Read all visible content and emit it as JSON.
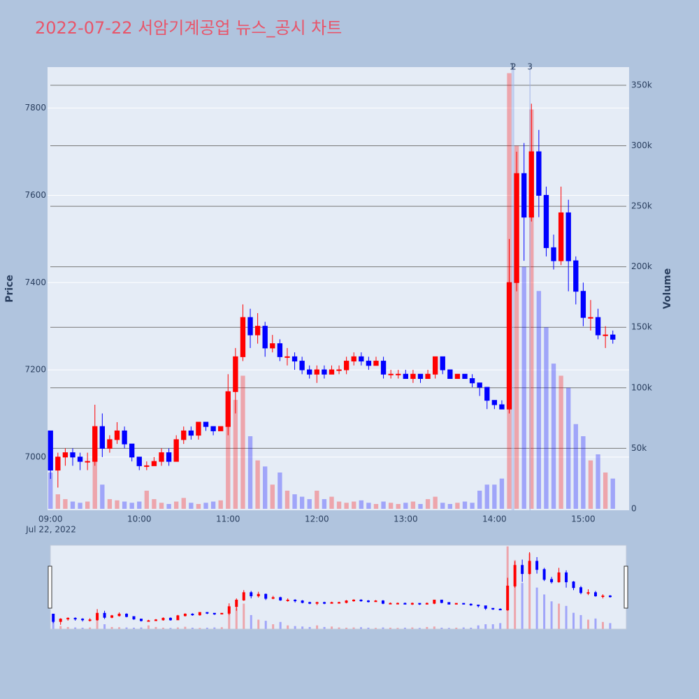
{
  "chart_data": {
    "type": "candlestick",
    "title": "2022-07-22 서암기계공업 뉴스_공시 차트",
    "y_label": "Price",
    "y2_label": "Volume",
    "x_date_label": "Jul 22, 2022",
    "increasing_color": "#ff0000",
    "decreasing_color": "#0000ff",
    "x": [
      "09:00",
      "09:05",
      "09:10",
      "09:15",
      "09:20",
      "09:25",
      "09:30",
      "09:35",
      "09:40",
      "09:45",
      "09:50",
      "09:55",
      "10:00",
      "10:05",
      "10:10",
      "10:15",
      "10:20",
      "10:25",
      "10:30",
      "10:35",
      "10:40",
      "10:45",
      "10:50",
      "10:55",
      "11:00",
      "11:05",
      "11:10",
      "11:15",
      "11:20",
      "11:25",
      "11:30",
      "11:35",
      "11:40",
      "11:45",
      "11:50",
      "11:55",
      "12:00",
      "12:05",
      "12:10",
      "12:15",
      "12:20",
      "12:25",
      "12:30",
      "12:35",
      "12:40",
      "12:45",
      "12:50",
      "12:55",
      "13:00",
      "13:05",
      "13:10",
      "13:15",
      "13:20",
      "13:25",
      "13:30",
      "13:35",
      "13:40",
      "13:45",
      "13:50",
      "13:55",
      "14:00",
      "14:05",
      "14:10",
      "14:15",
      "14:20",
      "14:25",
      "14:30",
      "14:35",
      "14:40",
      "14:45",
      "14:50",
      "14:55",
      "15:00",
      "15:05",
      "15:10",
      "15:15",
      "15:20"
    ],
    "open": [
      7060,
      6970,
      7000,
      7010,
      7000,
      6990,
      6990,
      7070,
      7020,
      7040,
      7060,
      7030,
      7000,
      6980,
      6980,
      6990,
      7010,
      6990,
      7040,
      7060,
      7050,
      7080,
      7070,
      7060,
      7070,
      7150,
      7230,
      7320,
      7280,
      7300,
      7250,
      7260,
      7230,
      7230,
      7220,
      7200,
      7190,
      7200,
      7190,
      7200,
      7200,
      7220,
      7230,
      7220,
      7210,
      7220,
      7190,
      7190,
      7190,
      7180,
      7190,
      7180,
      7190,
      7230,
      7200,
      7180,
      7190,
      7180,
      7170,
      7160,
      7130,
      7120,
      7110,
      7400,
      7650,
      7550,
      7700,
      7600,
      7480,
      7450,
      7560,
      7450,
      7380,
      7320,
      7320,
      7280,
      7280
    ],
    "high": [
      7060,
      7010,
      7020,
      7020,
      7010,
      7010,
      7120,
      7100,
      7050,
      7080,
      7070,
      7030,
      7000,
      6990,
      7000,
      7020,
      7020,
      7050,
      7070,
      7070,
      7080,
      7080,
      7070,
      7070,
      7190,
      7250,
      7350,
      7340,
      7330,
      7310,
      7280,
      7270,
      7250,
      7240,
      7230,
      7210,
      7210,
      7210,
      7210,
      7210,
      7230,
      7240,
      7240,
      7230,
      7230,
      7230,
      7200,
      7200,
      7200,
      7200,
      7190,
      7200,
      7230,
      7230,
      7200,
      7190,
      7190,
      7190,
      7170,
      7160,
      7130,
      7130,
      7500,
      7700,
      7720,
      7810,
      7750,
      7620,
      7510,
      7620,
      7590,
      7460,
      7400,
      7360,
      7340,
      7300,
      7290
    ],
    "low": [
      6950,
      6930,
      6980,
      6980,
      6970,
      6970,
      6980,
      7000,
      7010,
      7030,
      7020,
      6990,
      6970,
      6970,
      6980,
      6980,
      6980,
      6990,
      7030,
      7040,
      7040,
      7060,
      7050,
      7060,
      7050,
      7100,
      7220,
      7250,
      7260,
      7230,
      7240,
      7220,
      7210,
      7200,
      7190,
      7180,
      7170,
      7180,
      7190,
      7190,
      7190,
      7210,
      7210,
      7200,
      7210,
      7180,
      7180,
      7180,
      7180,
      7170,
      7170,
      7180,
      7180,
      7190,
      7180,
      7180,
      7180,
      7160,
      7140,
      7110,
      7110,
      7110,
      7100,
      7380,
      7450,
      7540,
      7550,
      7460,
      7430,
      7440,
      7380,
      7350,
      7300,
      7290,
      7270,
      7250,
      7260
    ],
    "close": [
      6970,
      7000,
      7010,
      7000,
      6990,
      6990,
      7070,
      7020,
      7040,
      7060,
      7030,
      7000,
      6980,
      6980,
      6990,
      7010,
      6990,
      7040,
      7060,
      7050,
      7080,
      7070,
      7060,
      7070,
      7150,
      7230,
      7320,
      7280,
      7300,
      7250,
      7260,
      7230,
      7230,
      7220,
      7200,
      7190,
      7200,
      7190,
      7200,
      7200,
      7220,
      7230,
      7220,
      7210,
      7220,
      7190,
      7190,
      7190,
      7180,
      7190,
      7180,
      7190,
      7230,
      7200,
      7180,
      7190,
      7180,
      7170,
      7160,
      7130,
      7120,
      7110,
      7400,
      7650,
      7550,
      7700,
      7600,
      7480,
      7450,
      7560,
      7450,
      7380,
      7320,
      7320,
      7280,
      7280,
      7270
    ],
    "volume": [
      30000,
      12000,
      8000,
      6000,
      5000,
      6000,
      40000,
      20000,
      8000,
      7000,
      6000,
      5000,
      6000,
      15000,
      8000,
      5000,
      4000,
      6000,
      9000,
      5000,
      4000,
      5000,
      6000,
      7000,
      80000,
      90000,
      110000,
      60000,
      40000,
      35000,
      20000,
      30000,
      15000,
      12000,
      10000,
      8000,
      15000,
      8000,
      10000,
      6000,
      5000,
      6000,
      7000,
      5000,
      4000,
      6000,
      5000,
      4000,
      5000,
      6000,
      4000,
      8000,
      10000,
      5000,
      4000,
      5000,
      6000,
      5000,
      15000,
      20000,
      20000,
      25000,
      360000,
      300000,
      200000,
      330000,
      180000,
      150000,
      120000,
      110000,
      100000,
      70000,
      60000,
      40000,
      45000,
      30000,
      25000
    ],
    "news": [
      {
        "x": "14:12",
        "label": "1"
      },
      {
        "x": "14:13",
        "label": "2"
      },
      {
        "x": "14:24",
        "label": "3"
      }
    ],
    "xlim": [
      "08:58",
      "15:31"
    ],
    "xticks": [
      "09:00",
      "10:00",
      "11:00",
      "12:00",
      "13:00",
      "14:00",
      "15:00"
    ],
    "ylim": [
      6878,
      7894
    ],
    "yticks": [
      7000,
      7200,
      7400,
      7600,
      7800
    ],
    "y2lim": [
      -1200,
      365000
    ],
    "y2ticks": [
      0,
      {
        "value": 50000,
        "label": "50k"
      },
      {
        "value": 100000,
        "label": "100k"
      },
      {
        "value": 150000,
        "label": "150k"
      },
      {
        "value": 200000,
        "label": "200k"
      },
      {
        "value": 250000,
        "label": "250k"
      },
      {
        "value": 300000,
        "label": "300k"
      },
      {
        "value": 350000,
        "label": "350k"
      }
    ],
    "grid": true,
    "rangeslider": true
  }
}
